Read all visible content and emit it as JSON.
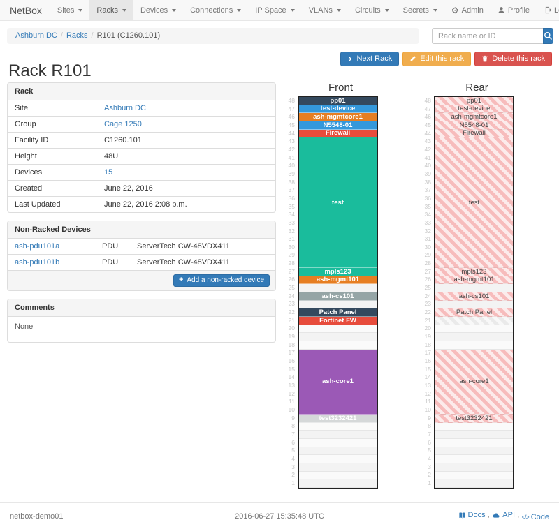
{
  "navbar": {
    "brand": "NetBox",
    "items": [
      {
        "label": "Sites",
        "active": false
      },
      {
        "label": "Racks",
        "active": true
      },
      {
        "label": "Devices",
        "active": false
      },
      {
        "label": "Connections",
        "active": false
      },
      {
        "label": "IP Space",
        "active": false
      },
      {
        "label": "VLANs",
        "active": false
      },
      {
        "label": "Circuits",
        "active": false
      },
      {
        "label": "Secrets",
        "active": false
      }
    ],
    "right_items": [
      {
        "icon": "gear-icon",
        "label": "Admin"
      },
      {
        "icon": "user-icon",
        "label": "Profile"
      },
      {
        "icon": "logout-icon",
        "label": "Log out"
      }
    ]
  },
  "breadcrumb": {
    "items": [
      {
        "label": "Ashburn DC",
        "link": true
      },
      {
        "label": "Racks",
        "link": true
      },
      {
        "label": "R101 (C1260.101)",
        "link": false
      }
    ]
  },
  "search": {
    "placeholder": "Rack name or ID"
  },
  "actions": {
    "next": "Next Rack",
    "edit": "Edit this rack",
    "delete": "Delete this rack"
  },
  "page_title": "Rack R101",
  "rack_panel": {
    "title": "Rack",
    "rows": [
      {
        "label": "Site",
        "value": "Ashburn DC",
        "link": true
      },
      {
        "label": "Group",
        "value": "Cage 1250",
        "link": true
      },
      {
        "label": "Facility ID",
        "value": "C1260.101",
        "link": false
      },
      {
        "label": "Height",
        "value": "48U",
        "link": false
      },
      {
        "label": "Devices",
        "value": "15",
        "link": true
      },
      {
        "label": "Created",
        "value": "June 22, 2016",
        "link": false
      },
      {
        "label": "Last Updated",
        "value": "June 22, 2016 2:08 p.m.",
        "link": false
      }
    ]
  },
  "nonracked_panel": {
    "title": "Non-Racked Devices",
    "rows": [
      {
        "name": "ash-pdu101a",
        "role": "PDU",
        "model": "ServerTech CW-48VDX411"
      },
      {
        "name": "ash-pdu101b",
        "role": "PDU",
        "model": "ServerTech CW-48VDX411"
      }
    ],
    "add_button": "Add a non-racked device"
  },
  "comments_panel": {
    "title": "Comments",
    "body": "None"
  },
  "elevation": {
    "front_title": "Front",
    "rear_title": "Rear",
    "units": 48,
    "hatch_pink": "#f7bcbc",
    "hatch_pink_light": "#fcebeb",
    "hatch_gray": "#eaeaea",
    "hatch_gray_light": "#f8f8f8",
    "devices": [
      {
        "u": 48,
        "h": 1,
        "label": "pp01",
        "color": "#34495e",
        "rear": "pink"
      },
      {
        "u": 47,
        "h": 1,
        "label": "test-device",
        "color": "#3498db",
        "rear": "pink"
      },
      {
        "u": 46,
        "h": 1,
        "label": "ash-mgmtcore1",
        "color": "#e67e22",
        "rear": "pink"
      },
      {
        "u": 45,
        "h": 1,
        "label": "N5548-01",
        "color": "#3498db",
        "rear": "pink"
      },
      {
        "u": 44,
        "h": 1,
        "label": "Firewall",
        "color": "#e74c3c",
        "rear": "pink"
      },
      {
        "u": 43,
        "h": 16,
        "label": "test",
        "color": "#1abc9c",
        "rear": "pink"
      },
      {
        "u": 27,
        "h": 1,
        "label": "mpls123",
        "color": "#1abc9c",
        "rear": "pink"
      },
      {
        "u": 26,
        "h": 1,
        "label": "ash-mgmt101",
        "color": "#e67e22",
        "rear": "pink"
      },
      {
        "u": 24,
        "h": 1,
        "label": "ash-cs101",
        "color": "#95a5a6",
        "rear": "pink"
      },
      {
        "u": 22,
        "h": 1,
        "label": "Patch Panel",
        "color": "#34495e",
        "rear": "pink"
      },
      {
        "u": 21,
        "h": 1,
        "label": "Fortinet FW",
        "color": "#e74c3c",
        "rear": "gray"
      },
      {
        "u": 17,
        "h": 8,
        "label": "ash-core1",
        "color": "#9b59b6",
        "rear": "pink"
      },
      {
        "u": 9,
        "h": 1,
        "label": "test3232421",
        "color": "#d5d8d9",
        "rear": "pink"
      }
    ]
  },
  "footer": {
    "left": "netbox-demo01",
    "center": "2016-06-27 15:35:48 UTC",
    "links": [
      {
        "icon": "book-icon",
        "label": "Docs"
      },
      {
        "icon": "cloud-icon",
        "label": "API"
      },
      {
        "icon": "code-icon",
        "label": "Code"
      }
    ]
  }
}
